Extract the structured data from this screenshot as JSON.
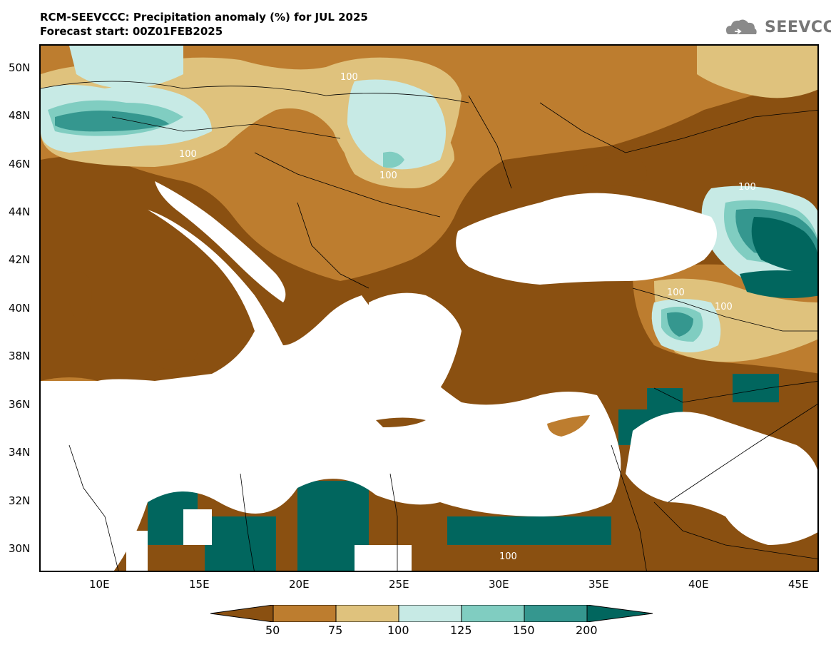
{
  "header": {
    "title_line1": "RCM-SEEVCCC: Precipitation anomaly (%) for JUL 2025",
    "title_line2": "Forecast start: 00Z01FEB2025",
    "logo_text": "SEEVCCC"
  },
  "map": {
    "variable": "Precipitation anomaly (%)",
    "latitude_labels": [
      "50N",
      "48N",
      "46N",
      "44N",
      "42N",
      "40N",
      "38N",
      "36N",
      "34N",
      "32N",
      "30N"
    ],
    "longitude_labels": [
      "10E",
      "15E",
      "20E",
      "25E",
      "30E",
      "35E",
      "40E",
      "45E"
    ],
    "contour_labels": [
      "100",
      "100",
      "100",
      "100",
      "100",
      "100",
      "100"
    ]
  },
  "legend": {
    "levels": [
      "50",
      "75",
      "100",
      "125",
      "150",
      "200"
    ],
    "colors": {
      "below_50": "#8a5011",
      "50_75": "#bd7d2f",
      "75_100": "#dfc27d",
      "100_125": "#c7eae5",
      "125_150": "#80cdc1",
      "150_200": "#35978f",
      "above_200": "#01665e"
    }
  }
}
